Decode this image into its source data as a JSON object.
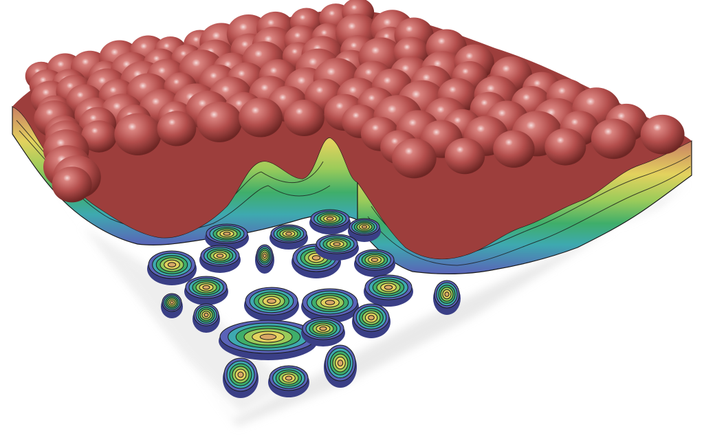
{
  "scene": {
    "subject": "cutaway-volume-render",
    "background": "#ffffff",
    "surface_color": "#b5504e",
    "surface_highlight": "#f4d6d4",
    "slab_base_color": "#5a63b8",
    "contour_line_color": "#1a1a1a",
    "colormap": [
      "#5a63b8",
      "#4f86c6",
      "#3ea9b0",
      "#3fae6a",
      "#9acb5a",
      "#e3d25e",
      "#d9a866",
      "#c97f63"
    ]
  }
}
